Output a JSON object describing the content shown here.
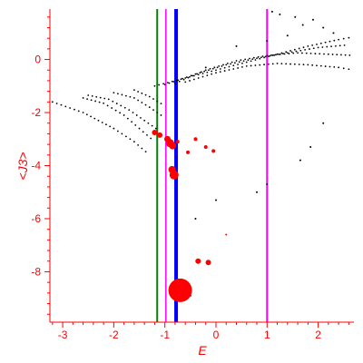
{
  "chart_data": {
    "type": "scatter",
    "title": "",
    "xlabel": "E",
    "ylabel": "<J3>",
    "xlim": [
      -3.25,
      2.7
    ],
    "ylim": [
      -9.9,
      1.9
    ],
    "grid": false,
    "colors": {
      "axis": "#ff0000",
      "points": "#000000",
      "highlight": "#ff0000"
    },
    "x_ticks": [
      -3,
      -2,
      -1,
      0,
      1,
      2
    ],
    "x_tick_labels": [
      "-3",
      "-2",
      "-1",
      "0",
      "1",
      "2"
    ],
    "y_ticks": [
      0,
      -2,
      -4,
      -6,
      -8
    ],
    "y_tick_labels": [
      "0",
      "-2",
      "-4",
      "-6",
      "-8"
    ],
    "vertical_lines": [
      {
        "x": -1.15,
        "color": "#008000",
        "width": 2
      },
      {
        "x": -0.98,
        "color": "#ff00ff",
        "width": 1.5
      },
      {
        "x": -0.78,
        "color": "#0000ff",
        "width": 4
      },
      {
        "x": 1.0,
        "color": "#ff00ff",
        "width": 2
      }
    ],
    "black_series": [
      {
        "x": [
          -3.2,
          -2.6,
          -2.0,
          -1.6,
          -1.3
        ],
        "y": [
          -1.6,
          -2.0,
          -2.6,
          -3.1,
          -3.6
        ]
      },
      {
        "x": [
          -2.6,
          -2.2,
          -1.8,
          -1.5,
          -1.2
        ],
        "y": [
          -1.45,
          -1.65,
          -2.1,
          -2.6,
          -3.1
        ]
      },
      {
        "x": [
          -2.5,
          -2.1,
          -1.7,
          -1.4,
          -1.1
        ],
        "y": [
          -1.35,
          -1.5,
          -1.9,
          -2.3,
          -2.7
        ]
      },
      {
        "x": [
          -2.0,
          -1.6,
          -1.3,
          -1.0
        ],
        "y": [
          -1.25,
          -1.45,
          -1.8,
          -2.2
        ]
      },
      {
        "x": [
          -1.6,
          -1.3,
          -1.0
        ],
        "y": [
          -1.15,
          -1.4,
          -1.75
        ]
      },
      {
        "x": [
          -1.2,
          -0.6,
          0.0,
          0.6,
          1.2,
          1.8,
          2.4,
          2.7
        ],
        "y": [
          -1.0,
          -0.7,
          -0.4,
          -0.1,
          0.2,
          0.5,
          0.75,
          0.85
        ]
      },
      {
        "x": [
          -1.0,
          -0.4,
          0.2,
          0.8,
          1.4,
          2.0,
          2.6
        ],
        "y": [
          -0.95,
          -0.55,
          -0.2,
          0.05,
          0.25,
          0.45,
          0.55
        ]
      },
      {
        "x": [
          -0.8,
          -0.2,
          0.4,
          1.0,
          1.6,
          2.2,
          2.7
        ],
        "y": [
          -0.9,
          -0.4,
          -0.05,
          0.15,
          0.25,
          0.2,
          0.15
        ]
      },
      {
        "x": [
          -0.6,
          0.0,
          0.6,
          1.2,
          1.8,
          2.4,
          2.7
        ],
        "y": [
          -0.85,
          -0.5,
          -0.25,
          -0.15,
          -0.2,
          -0.3,
          -0.4
        ]
      }
    ],
    "black_scatter": {
      "x": [
        1.1,
        1.25,
        1.55,
        1.7,
        1.9,
        2.1,
        2.3,
        1.4,
        1.0,
        0.4,
        -0.2,
        2.1,
        1.85,
        1.65,
        1.0,
        0.8,
        0.0,
        -0.4,
        -0.5
      ],
      "y": [
        1.8,
        1.7,
        1.6,
        1.3,
        1.5,
        1.2,
        1.0,
        0.9,
        0.7,
        0.5,
        -0.3,
        -2.4,
        -3.3,
        -3.8,
        -4.7,
        -5.0,
        -5.3,
        -6.0,
        -8.9
      ]
    },
    "red_points": {
      "x": [
        -1.2,
        -1.1,
        -0.95,
        -0.9,
        -0.85,
        -0.82,
        -0.86,
        -0.75,
        -0.55,
        -0.4,
        -0.2,
        -0.05,
        -0.35,
        -0.15,
        0.2
      ],
      "y": [
        -2.75,
        -2.85,
        -3.0,
        -3.15,
        -3.25,
        -4.35,
        -4.15,
        -3.1,
        -3.5,
        -3.0,
        -3.3,
        -3.45,
        -7.6,
        -7.65,
        -6.6
      ],
      "size": [
        3,
        3,
        3.5,
        4.5,
        4,
        5,
        4,
        2,
        2,
        2,
        2,
        2,
        3,
        3,
        1
      ]
    },
    "big_red_point": {
      "x": -0.7,
      "y": -8.7,
      "r": 13
    }
  }
}
